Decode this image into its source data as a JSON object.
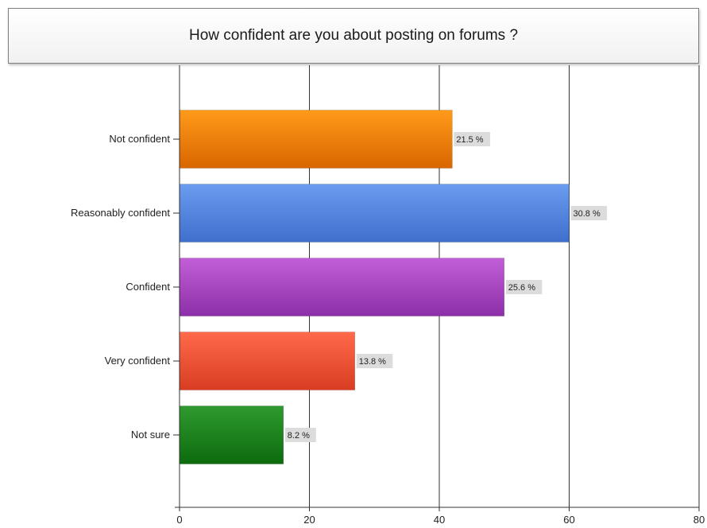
{
  "chart_data": {
    "type": "bar",
    "orientation": "horizontal",
    "title": "How confident are you about posting on forums ?",
    "categories": [
      "Not confident",
      "Reasonably confident",
      "Confident",
      "Very confident",
      "Not sure"
    ],
    "values": [
      42,
      60,
      50,
      27,
      16
    ],
    "data_labels": [
      "21.5 %",
      "30.8 %",
      "25.6 %",
      "13.8 %",
      "8.2 %"
    ],
    "xlim": [
      0,
      80
    ],
    "xticks": [
      0,
      20,
      40,
      60,
      80
    ],
    "grid": true,
    "colors": [
      [
        "#ff9a1a",
        "#d96600"
      ],
      [
        "#6a9cf0",
        "#3f6fcc"
      ],
      [
        "#c25fd8",
        "#8c2fa8"
      ],
      [
        "#ff6a4a",
        "#d83d22"
      ],
      [
        "#2f9a2f",
        "#0d6b0d"
      ]
    ]
  }
}
